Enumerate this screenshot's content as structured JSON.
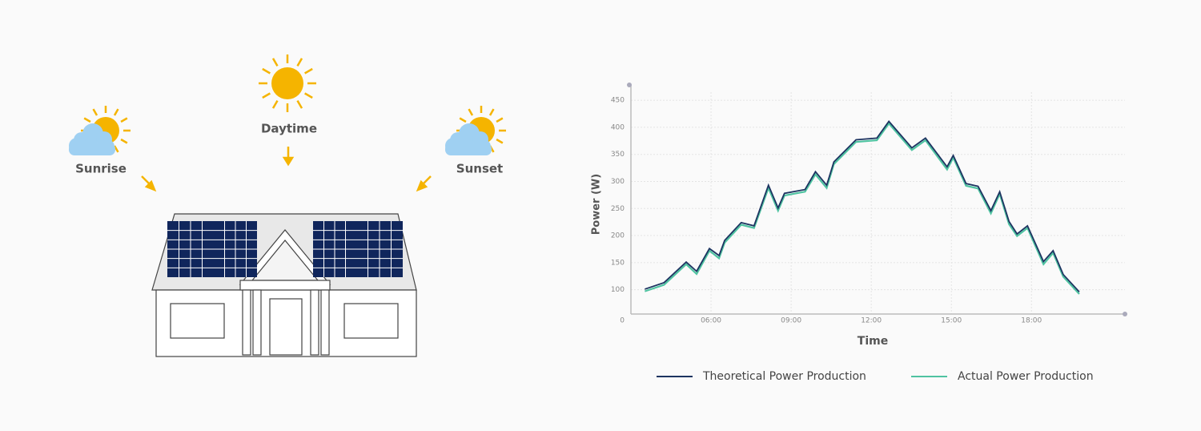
{
  "illustration": {
    "labels": [
      "Sunrise",
      "Daytime",
      "Sunset"
    ]
  },
  "chart_data": {
    "type": "line",
    "ylabel": "Power (W)",
    "xlabel": "Time",
    "origin_label": "0",
    "xlim": [
      3,
      21.5
    ],
    "ylim": [
      55,
      465
    ],
    "xticks": [
      {
        "value": 6,
        "label": "06:00"
      },
      {
        "value": 9,
        "label": "09:00"
      },
      {
        "value": 12,
        "label": "12:00"
      },
      {
        "value": 15,
        "label": "15:00"
      },
      {
        "value": 18,
        "label": "18:00"
      }
    ],
    "yticks": [
      100,
      150,
      200,
      250,
      300,
      350,
      400,
      450
    ],
    "grid": true,
    "x": [
      3.52,
      4.24,
      5.07,
      5.46,
      5.94,
      6.3,
      6.51,
      7.13,
      7.61,
      8.15,
      8.51,
      8.75,
      9.52,
      9.91,
      10.33,
      10.6,
      11.43,
      12.21,
      12.66,
      13.52,
      14.03,
      14.84,
      15.07,
      15.55,
      16.0,
      16.48,
      16.81,
      17.16,
      17.46,
      17.85,
      18.45,
      18.81,
      19.19,
      19.79
    ],
    "series": [
      {
        "name": "Theoretical Power Production",
        "color": "#1d3461",
        "values": [
          101,
          113,
          151,
          134,
          176,
          163,
          191,
          224,
          218,
          293,
          251,
          278,
          285,
          318,
          293,
          336,
          377,
          380,
          411,
          362,
          380,
          327,
          348,
          296,
          291,
          246,
          281,
          226,
          203,
          218,
          152,
          172,
          128,
          96
        ]
      },
      {
        "name": "Actual Power Production",
        "color": "#4fc3a1",
        "values": [
          97,
          109,
          147,
          129,
          172,
          158,
          187,
          220,
          214,
          288,
          246,
          274,
          281,
          313,
          288,
          332,
          373,
          376,
          407,
          358,
          376,
          322,
          344,
          292,
          287,
          241,
          277,
          221,
          199,
          214,
          147,
          168,
          124,
          92
        ]
      }
    ],
    "legend": "bottom"
  }
}
